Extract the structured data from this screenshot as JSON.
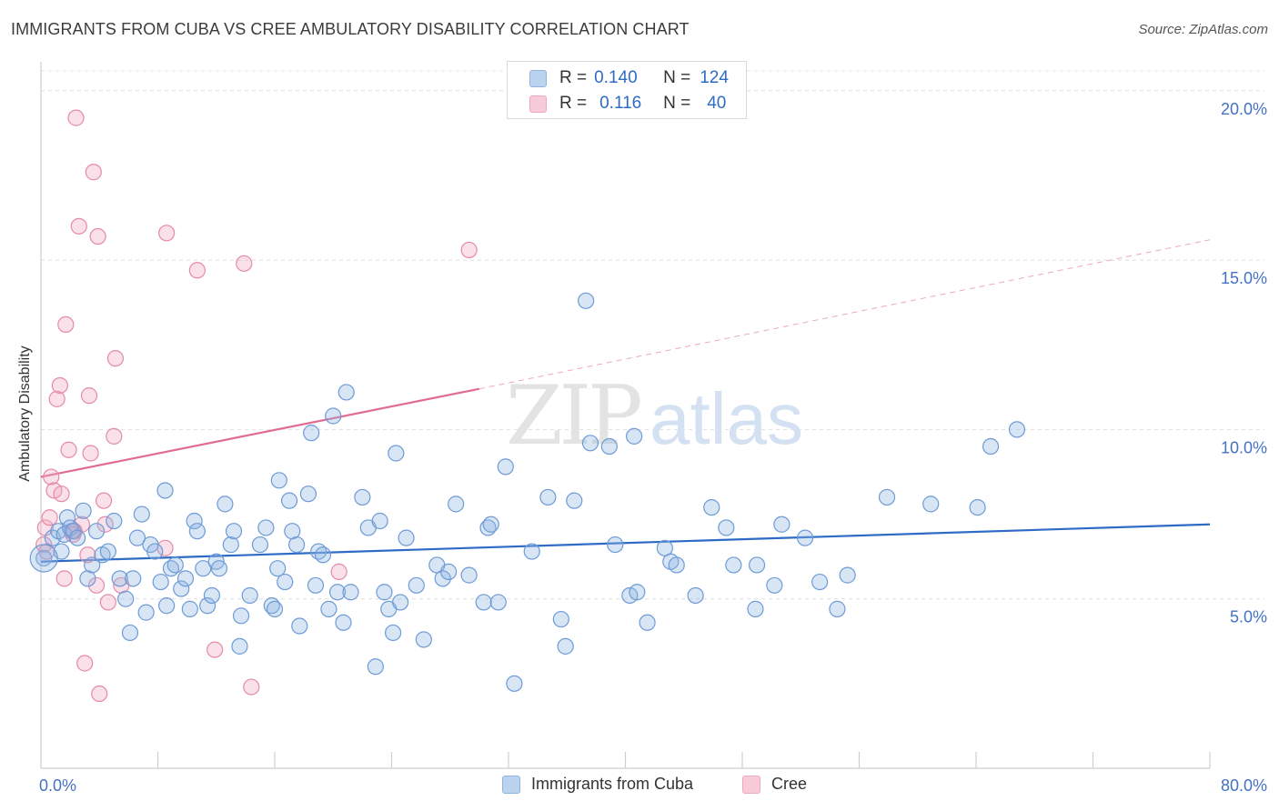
{
  "header": {
    "title": "IMMIGRANTS FROM CUBA VS CREE AMBULATORY DISABILITY CORRELATION CHART",
    "source": "Source: ZipAtlas.com"
  },
  "watermark": {
    "zip": "ZIP",
    "atlas": "atlas"
  },
  "legend": {
    "rows": [
      {
        "r_label": "R =",
        "r_value": "0.140",
        "n_label": "N =",
        "n_value": "124",
        "color": "#8fb4e3"
      },
      {
        "r_label": "R =",
        "r_value": "0.116",
        "n_label": "N =",
        "n_value": "40",
        "color": "#f2a7bf"
      }
    ]
  },
  "bottom_legend": [
    {
      "label": "Immigrants from Cuba",
      "color": "#8fb4e3"
    },
    {
      "label": "Cree",
      "color": "#f2a7bf"
    }
  ],
  "chart_data": {
    "type": "scatter",
    "title": "IMMIGRANTS FROM CUBA VS CREE AMBULATORY DISABILITY CORRELATION CHART",
    "xlabel": "",
    "ylabel": "Ambulatory Disability",
    "xlim": [
      0,
      80
    ],
    "ylim": [
      0,
      20.8
    ],
    "x_tick_labels": [
      "0.0%",
      "80.0%"
    ],
    "y_ticks": [
      5,
      10,
      15,
      20
    ],
    "y_tick_labels": [
      "5.0%",
      "10.0%",
      "15.0%",
      "20.0%"
    ],
    "grid": true,
    "legend_position": "top-center",
    "series": [
      {
        "name": "Immigrants from Cuba",
        "color": "#8fb4e3",
        "stroke": "#6d9bd6",
        "trend": {
          "x": [
            0,
            80
          ],
          "y": [
            6.1,
            7.2
          ],
          "color": "#2e6bc6",
          "style": "solid"
        },
        "points": [
          [
            0.2,
            6.2
          ],
          [
            0.8,
            6.8
          ],
          [
            1.2,
            7.0
          ],
          [
            1.4,
            6.4
          ],
          [
            1.6,
            6.9
          ],
          [
            1.8,
            7.4
          ],
          [
            2.0,
            7.1
          ],
          [
            2.2,
            7.0
          ],
          [
            2.5,
            6.8
          ],
          [
            2.9,
            7.6
          ],
          [
            3.2,
            5.6
          ],
          [
            3.5,
            6.0
          ],
          [
            3.8,
            7.0
          ],
          [
            4.2,
            6.3
          ],
          [
            4.6,
            6.4
          ],
          [
            5.0,
            7.3
          ],
          [
            5.4,
            5.6
          ],
          [
            5.8,
            5.0
          ],
          [
            6.1,
            4.0
          ],
          [
            6.3,
            5.6
          ],
          [
            6.6,
            6.8
          ],
          [
            6.9,
            7.5
          ],
          [
            7.2,
            4.6
          ],
          [
            7.5,
            6.6
          ],
          [
            7.8,
            6.4
          ],
          [
            8.2,
            5.5
          ],
          [
            8.5,
            8.2
          ],
          [
            8.6,
            4.8
          ],
          [
            8.9,
            5.9
          ],
          [
            9.2,
            6.0
          ],
          [
            9.6,
            5.3
          ],
          [
            9.9,
            5.6
          ],
          [
            10.2,
            4.7
          ],
          [
            10.5,
            7.3
          ],
          [
            10.7,
            7.0
          ],
          [
            11.1,
            5.9
          ],
          [
            11.4,
            4.8
          ],
          [
            11.7,
            5.1
          ],
          [
            12.0,
            6.1
          ],
          [
            12.2,
            5.9
          ],
          [
            12.6,
            7.8
          ],
          [
            13.0,
            6.6
          ],
          [
            13.2,
            7.0
          ],
          [
            13.6,
            3.6
          ],
          [
            13.7,
            4.5
          ],
          [
            14.3,
            5.1
          ],
          [
            15.0,
            6.6
          ],
          [
            15.4,
            7.1
          ],
          [
            15.8,
            4.8
          ],
          [
            16.0,
            4.7
          ],
          [
            16.2,
            5.9
          ],
          [
            16.3,
            8.5
          ],
          [
            16.7,
            5.5
          ],
          [
            17.0,
            7.9
          ],
          [
            17.2,
            7.0
          ],
          [
            17.5,
            6.6
          ],
          [
            17.7,
            4.2
          ],
          [
            18.3,
            8.1
          ],
          [
            18.5,
            9.9
          ],
          [
            18.8,
            5.4
          ],
          [
            19.0,
            6.4
          ],
          [
            19.3,
            6.3
          ],
          [
            19.7,
            4.7
          ],
          [
            20.0,
            10.4
          ],
          [
            20.3,
            5.2
          ],
          [
            20.7,
            4.3
          ],
          [
            20.9,
            11.1
          ],
          [
            21.2,
            5.2
          ],
          [
            22.0,
            8.0
          ],
          [
            22.4,
            7.1
          ],
          [
            22.9,
            3.0
          ],
          [
            23.2,
            7.3
          ],
          [
            23.5,
            5.2
          ],
          [
            23.8,
            4.7
          ],
          [
            24.1,
            4.0
          ],
          [
            24.3,
            9.3
          ],
          [
            24.6,
            4.9
          ],
          [
            25.0,
            6.8
          ],
          [
            25.7,
            5.4
          ],
          [
            26.2,
            3.8
          ],
          [
            27.1,
            6.0
          ],
          [
            27.5,
            5.6
          ],
          [
            27.9,
            5.8
          ],
          [
            28.4,
            7.8
          ],
          [
            29.3,
            5.7
          ],
          [
            30.3,
            4.9
          ],
          [
            30.6,
            7.1
          ],
          [
            30.8,
            7.2
          ],
          [
            31.3,
            4.9
          ],
          [
            31.8,
            8.9
          ],
          [
            32.4,
            2.5
          ],
          [
            33.6,
            6.4
          ],
          [
            34.7,
            8.0
          ],
          [
            35.6,
            4.4
          ],
          [
            35.9,
            3.6
          ],
          [
            36.5,
            7.9
          ],
          [
            37.3,
            13.8
          ],
          [
            37.6,
            9.6
          ],
          [
            38.9,
            9.5
          ],
          [
            39.3,
            6.6
          ],
          [
            40.3,
            5.1
          ],
          [
            40.6,
            9.8
          ],
          [
            40.8,
            5.2
          ],
          [
            41.5,
            4.3
          ],
          [
            42.7,
            6.5
          ],
          [
            43.1,
            6.1
          ],
          [
            43.5,
            6.0
          ],
          [
            44.8,
            5.1
          ],
          [
            45.9,
            7.7
          ],
          [
            46.9,
            7.1
          ],
          [
            47.4,
            6.0
          ],
          [
            48.9,
            4.7
          ],
          [
            49.0,
            6.0
          ],
          [
            50.2,
            5.4
          ],
          [
            50.7,
            7.2
          ],
          [
            52.3,
            6.8
          ],
          [
            53.3,
            5.5
          ],
          [
            54.5,
            4.7
          ],
          [
            55.2,
            5.7
          ],
          [
            57.9,
            8.0
          ],
          [
            60.9,
            7.8
          ],
          [
            64.1,
            7.7
          ],
          [
            65.0,
            9.5
          ],
          [
            66.8,
            10.0
          ]
        ]
      },
      {
        "name": "Cree",
        "color": "#f2a7bf",
        "stroke": "#e58aa8",
        "trend": {
          "x": [
            0,
            30
          ],
          "y": [
            8.6,
            11.2
          ],
          "extended_to": [
            80,
            15.6
          ],
          "color": "#e06c95",
          "style": "solid-then-dashed"
        },
        "points": [
          [
            0.3,
            7.1
          ],
          [
            0.4,
            6.4
          ],
          [
            0.6,
            7.4
          ],
          [
            0.7,
            8.6
          ],
          [
            0.9,
            8.2
          ],
          [
            1.1,
            10.9
          ],
          [
            1.3,
            11.3
          ],
          [
            1.4,
            8.1
          ],
          [
            1.6,
            5.6
          ],
          [
            1.7,
            13.1
          ],
          [
            1.9,
            9.4
          ],
          [
            2.1,
            7.0
          ],
          [
            2.3,
            7.0
          ],
          [
            2.4,
            19.2
          ],
          [
            2.6,
            16.0
          ],
          [
            2.8,
            7.2
          ],
          [
            3.0,
            3.1
          ],
          [
            3.2,
            6.3
          ],
          [
            3.3,
            11.0
          ],
          [
            3.4,
            9.3
          ],
          [
            3.6,
            17.6
          ],
          [
            3.8,
            5.4
          ],
          [
            3.9,
            15.7
          ],
          [
            4.0,
            2.2
          ],
          [
            4.3,
            7.9
          ],
          [
            4.4,
            7.2
          ],
          [
            4.6,
            4.9
          ],
          [
            5.0,
            9.8
          ],
          [
            5.1,
            12.1
          ],
          [
            5.5,
            5.4
          ],
          [
            8.5,
            6.5
          ],
          [
            8.6,
            15.8
          ],
          [
            10.7,
            14.7
          ],
          [
            11.9,
            3.5
          ],
          [
            13.9,
            14.9
          ],
          [
            14.4,
            2.4
          ],
          [
            20.4,
            5.8
          ],
          [
            29.3,
            15.3
          ],
          [
            0.2,
            6.6
          ],
          [
            2.2,
            6.9
          ]
        ]
      }
    ]
  }
}
